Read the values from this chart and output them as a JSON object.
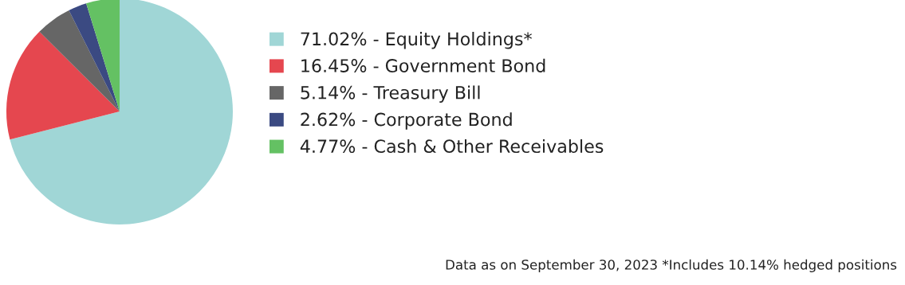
{
  "chart_data": {
    "type": "pie",
    "categories": [
      "Equity Holdings*",
      "Government Bond",
      "Treasury Bill",
      "Corporate Bond",
      "Cash & Other Receivables"
    ],
    "values": [
      71.02,
      16.45,
      5.14,
      2.62,
      4.77
    ],
    "value_labels": [
      "71.02%",
      "16.45%",
      "5.14%",
      "2.62%",
      "4.77%"
    ],
    "colors": [
      "#a0d6d6",
      "#e5474f",
      "#666666",
      "#3b4a82",
      "#64c163"
    ],
    "legend": "right",
    "annotations": [
      "Data as on September 30, 2023 *Includes 10.14% hedged positions"
    ]
  }
}
